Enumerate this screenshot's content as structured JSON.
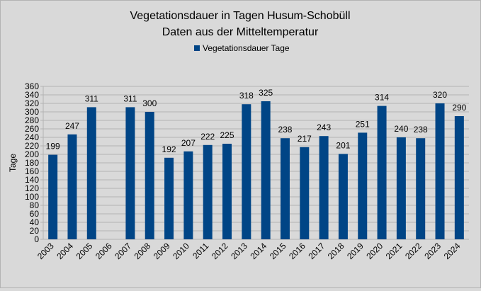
{
  "chart_data": {
    "type": "bar",
    "title": "Vegetationsdauer in Tagen Husum-Schobüll",
    "subtitle": "Daten aus der Mitteltemperatur",
    "ylabel": "Tage",
    "xlabel": "",
    "ylim": [
      0,
      360
    ],
    "ytick_step": 20,
    "grid": true,
    "legend_position": "top",
    "categories": [
      "2003",
      "2004",
      "2005",
      "2006",
      "2007",
      "2008",
      "2009",
      "2010",
      "2011",
      "2012",
      "2013",
      "2014",
      "2015",
      "2016",
      "2017",
      "2018",
      "2019",
      "2020",
      "2021",
      "2022",
      "2023",
      "2024"
    ],
    "series": [
      {
        "name": "Vegetationsdauer Tage",
        "color": "#004586",
        "values": [
          199,
          247,
          311,
          null,
          311,
          300,
          192,
          207,
          222,
          225,
          318,
          325,
          238,
          217,
          243,
          201,
          251,
          314,
          240,
          238,
          320,
          290
        ]
      }
    ]
  }
}
